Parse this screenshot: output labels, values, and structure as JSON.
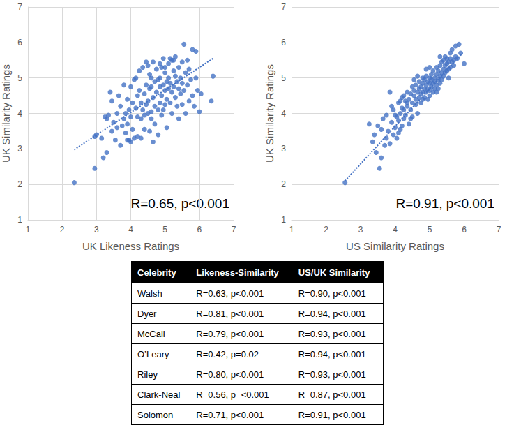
{
  "chart_data": [
    {
      "type": "scatter",
      "x_label": "UK Likeness Ratings",
      "y_label": "UK Similarity Ratings",
      "annotation": "R=0.65, p<0.001",
      "color": "#4472c4",
      "marker": "circle",
      "grid": true,
      "xlim": [
        1,
        7
      ],
      "xticks": [
        1,
        2,
        3,
        4,
        5,
        6,
        7
      ],
      "ylim": [
        1,
        7
      ],
      "yticks": [
        1,
        2,
        3,
        4,
        5,
        6,
        7
      ],
      "trend_line": {
        "x": [
          2.35,
          6.4
        ],
        "values": [
          2.98,
          5.55
        ],
        "line_style": "dotted"
      },
      "points": [
        [
          2.35,
          2.05
        ],
        [
          2.95,
          2.45
        ],
        [
          2.95,
          3.35
        ],
        [
          3.0,
          3.4
        ],
        [
          3.15,
          3.3
        ],
        [
          3.2,
          2.75
        ],
        [
          3.25,
          3.9
        ],
        [
          3.3,
          3.85
        ],
        [
          3.3,
          2.9
        ],
        [
          3.35,
          3.95
        ],
        [
          3.4,
          4.6
        ],
        [
          3.45,
          3.5
        ],
        [
          3.45,
          4.35
        ],
        [
          3.5,
          3.75
        ],
        [
          3.55,
          3.25
        ],
        [
          3.6,
          4.0
        ],
        [
          3.6,
          3.6
        ],
        [
          3.65,
          4.5
        ],
        [
          3.7,
          3.1
        ],
        [
          3.7,
          4.2
        ],
        [
          3.75,
          3.65
        ],
        [
          3.8,
          4.8
        ],
        [
          3.8,
          3.85
        ],
        [
          3.85,
          4.0
        ],
        [
          3.85,
          3.45
        ],
        [
          3.9,
          4.4
        ],
        [
          3.9,
          3.7
        ],
        [
          3.95,
          4.1
        ],
        [
          3.95,
          3.25
        ],
        [
          4.0,
          4.75
        ],
        [
          4.0,
          3.2
        ],
        [
          4.0,
          3.9
        ],
        [
          4.05,
          4.3
        ],
        [
          4.05,
          3.55
        ],
        [
          4.1,
          4.95
        ],
        [
          4.1,
          3.3
        ],
        [
          4.15,
          4.15
        ],
        [
          4.15,
          5.0
        ],
        [
          4.2,
          4.5
        ],
        [
          4.2,
          3.35
        ],
        [
          4.2,
          3.9
        ],
        [
          4.25,
          4.65
        ],
        [
          4.25,
          5.2
        ],
        [
          4.3,
          3.85
        ],
        [
          4.3,
          4.3
        ],
        [
          4.35,
          4.1
        ],
        [
          4.35,
          5.3
        ],
        [
          4.4,
          4.55
        ],
        [
          4.4,
          3.95
        ],
        [
          4.4,
          3.55
        ],
        [
          4.45,
          4.8
        ],
        [
          4.45,
          5.45
        ],
        [
          4.5,
          4.0
        ],
        [
          4.5,
          5.35
        ],
        [
          4.5,
          4.35
        ],
        [
          4.55,
          3.5
        ],
        [
          4.55,
          4.7
        ],
        [
          4.55,
          5.1
        ],
        [
          4.6,
          4.05
        ],
        [
          4.6,
          3.85
        ],
        [
          4.6,
          5.0
        ],
        [
          4.65,
          4.45
        ],
        [
          4.65,
          5.45
        ],
        [
          4.7,
          4.2
        ],
        [
          4.7,
          4.9
        ],
        [
          4.7,
          3.7
        ],
        [
          4.75,
          4.6
        ],
        [
          4.75,
          5.25
        ],
        [
          4.8,
          4.95
        ],
        [
          4.8,
          4.1
        ],
        [
          4.8,
          3.4
        ],
        [
          4.85,
          4.75
        ],
        [
          4.85,
          5.0
        ],
        [
          4.85,
          4.3
        ],
        [
          4.9,
          5.3
        ],
        [
          4.9,
          4.5
        ],
        [
          4.9,
          3.95
        ],
        [
          4.95,
          4.8
        ],
        [
          4.95,
          5.55
        ],
        [
          5.0,
          4.65
        ],
        [
          5.0,
          4.25
        ],
        [
          5.0,
          5.15
        ],
        [
          5.05,
          4.9
        ],
        [
          5.05,
          4.4
        ],
        [
          5.05,
          3.6
        ],
        [
          5.1,
          5.4
        ],
        [
          5.1,
          4.7
        ],
        [
          5.1,
          5.0
        ],
        [
          5.15,
          4.3
        ],
        [
          5.15,
          4.85
        ],
        [
          5.2,
          5.5
        ],
        [
          5.2,
          4.6
        ],
        [
          5.2,
          4.0
        ],
        [
          5.25,
          5.2
        ],
        [
          5.25,
          4.75
        ],
        [
          5.3,
          5.05
        ],
        [
          5.3,
          4.45
        ],
        [
          5.3,
          5.6
        ],
        [
          5.35,
          4.9
        ],
        [
          5.35,
          4.2
        ],
        [
          5.4,
          5.3
        ],
        [
          5.4,
          4.7
        ],
        [
          5.4,
          3.85
        ],
        [
          5.45,
          5.0
        ],
        [
          5.45,
          4.55
        ],
        [
          5.5,
          5.45
        ],
        [
          5.5,
          4.85
        ],
        [
          5.5,
          4.25
        ],
        [
          5.55,
          5.95
        ],
        [
          5.55,
          4.65
        ],
        [
          5.6,
          5.15
        ],
        [
          5.6,
          4.0
        ],
        [
          5.65,
          5.5
        ],
        [
          5.65,
          4.8
        ],
        [
          5.7,
          4.35
        ],
        [
          5.7,
          5.25
        ],
        [
          5.75,
          4.95
        ],
        [
          5.8,
          5.8
        ],
        [
          5.8,
          4.5
        ],
        [
          5.85,
          4.2
        ],
        [
          5.9,
          5.75
        ],
        [
          5.9,
          5.0
        ],
        [
          5.95,
          4.65
        ],
        [
          6.0,
          4.05
        ],
        [
          6.05,
          4.55
        ],
        [
          6.35,
          4.35
        ],
        [
          6.4,
          5.05
        ],
        [
          4.65,
          3.2
        ],
        [
          4.3,
          3.3
        ],
        [
          3.9,
          3.25
        ],
        [
          4.85,
          5.4
        ],
        [
          5.0,
          5.3
        ],
        [
          4.6,
          4.75
        ],
        [
          4.45,
          4.25
        ],
        [
          5.25,
          5.5
        ],
        [
          4.95,
          4.1
        ],
        [
          5.15,
          5.55
        ]
      ]
    },
    {
      "type": "scatter",
      "x_label": "US Similarity Ratings",
      "y_label": "UK Similarity Ratings",
      "annotation": "R=0.91, p<0.001",
      "color": "#4472c4",
      "marker": "circle",
      "grid": true,
      "xlim": [
        1,
        7
      ],
      "xticks": [
        1,
        2,
        3,
        4,
        5,
        6,
        7
      ],
      "ylim": [
        1,
        7
      ],
      "yticks": [
        1,
        2,
        3,
        4,
        5,
        6,
        7
      ],
      "trend_line": {
        "x": [
          2.55,
          5.95
        ],
        "values": [
          2.1,
          5.7
        ],
        "line_style": "dotted"
      },
      "points": [
        [
          2.55,
          2.05
        ],
        [
          3.55,
          2.45
        ],
        [
          3.6,
          2.75
        ],
        [
          3.45,
          2.9
        ],
        [
          3.35,
          3.2
        ],
        [
          3.4,
          3.4
        ],
        [
          3.25,
          3.7
        ],
        [
          3.5,
          3.65
        ],
        [
          3.7,
          3.1
        ],
        [
          3.75,
          3.3
        ],
        [
          3.8,
          3.5
        ],
        [
          3.85,
          3.15
        ],
        [
          3.65,
          3.85
        ],
        [
          3.9,
          3.75
        ],
        [
          3.95,
          3.4
        ],
        [
          3.95,
          4.1
        ],
        [
          3.9,
          4.2
        ],
        [
          3.85,
          4.6
        ],
        [
          4.0,
          3.6
        ],
        [
          4.05,
          3.9
        ],
        [
          4.05,
          3.3
        ],
        [
          4.1,
          3.8
        ],
        [
          4.1,
          4.3
        ],
        [
          4.15,
          4.0
        ],
        [
          4.15,
          3.55
        ],
        [
          4.2,
          4.15
        ],
        [
          4.2,
          4.45
        ],
        [
          4.25,
          3.85
        ],
        [
          4.25,
          4.1
        ],
        [
          4.3,
          4.35
        ],
        [
          4.3,
          3.95
        ],
        [
          4.35,
          4.2
        ],
        [
          4.35,
          4.6
        ],
        [
          4.4,
          3.7
        ],
        [
          4.4,
          4.4
        ],
        [
          4.45,
          4.1
        ],
        [
          4.45,
          4.55
        ],
        [
          4.5,
          4.3
        ],
        [
          4.5,
          4.75
        ],
        [
          4.5,
          3.9
        ],
        [
          4.55,
          4.5
        ],
        [
          4.55,
          4.65
        ],
        [
          4.6,
          4.25
        ],
        [
          4.6,
          4.8
        ],
        [
          4.6,
          4.4
        ],
        [
          4.65,
          4.6
        ],
        [
          4.65,
          4.0
        ],
        [
          4.7,
          4.7
        ],
        [
          4.7,
          4.45
        ],
        [
          4.7,
          4.9
        ],
        [
          4.75,
          4.55
        ],
        [
          4.75,
          4.75
        ],
        [
          4.75,
          4.3
        ],
        [
          4.8,
          4.85
        ],
        [
          4.8,
          4.6
        ],
        [
          4.8,
          5.0
        ],
        [
          4.85,
          4.7
        ],
        [
          4.85,
          4.45
        ],
        [
          4.85,
          4.95
        ],
        [
          4.9,
          4.8
        ],
        [
          4.9,
          4.6
        ],
        [
          4.9,
          5.05
        ],
        [
          4.95,
          4.7
        ],
        [
          4.95,
          4.9
        ],
        [
          4.95,
          4.4
        ],
        [
          5.0,
          4.85
        ],
        [
          5.0,
          4.65
        ],
        [
          5.0,
          5.0
        ],
        [
          5.0,
          4.5
        ],
        [
          5.05,
          4.75
        ],
        [
          5.05,
          5.1
        ],
        [
          5.05,
          4.95
        ],
        [
          5.1,
          4.6
        ],
        [
          5.1,
          4.85
        ],
        [
          5.1,
          5.2
        ],
        [
          5.15,
          4.7
        ],
        [
          5.15,
          5.0
        ],
        [
          5.15,
          4.9
        ],
        [
          5.2,
          4.8
        ],
        [
          5.2,
          5.1
        ],
        [
          5.2,
          5.3
        ],
        [
          5.25,
          4.95
        ],
        [
          5.25,
          5.2
        ],
        [
          5.25,
          4.7
        ],
        [
          5.3,
          5.05
        ],
        [
          5.3,
          5.35
        ],
        [
          5.3,
          4.85
        ],
        [
          5.35,
          5.15
        ],
        [
          5.35,
          5.45
        ],
        [
          5.35,
          4.95
        ],
        [
          5.4,
          5.25
        ],
        [
          5.4,
          5.5
        ],
        [
          5.4,
          5.05
        ],
        [
          5.45,
          5.35
        ],
        [
          5.45,
          5.6
        ],
        [
          5.45,
          5.15
        ],
        [
          5.5,
          5.4
        ],
        [
          5.5,
          5.2
        ],
        [
          5.5,
          5.55
        ],
        [
          5.55,
          5.45
        ],
        [
          5.55,
          5.25
        ],
        [
          5.6,
          5.3
        ],
        [
          5.6,
          5.55
        ],
        [
          5.6,
          5.7
        ],
        [
          5.65,
          5.45
        ],
        [
          5.65,
          5.8
        ],
        [
          5.7,
          5.5
        ],
        [
          5.7,
          5.35
        ],
        [
          5.75,
          5.6
        ],
        [
          5.75,
          5.9
        ],
        [
          5.8,
          5.55
        ],
        [
          5.85,
          5.95
        ],
        [
          5.9,
          5.7
        ],
        [
          6.0,
          5.4
        ],
        [
          4.55,
          4.95
        ],
        [
          4.65,
          5.05
        ],
        [
          4.35,
          4.3
        ],
        [
          4.2,
          3.65
        ],
        [
          4.0,
          3.95
        ],
        [
          3.75,
          3.95
        ],
        [
          4.45,
          3.85
        ],
        [
          5.0,
          5.3
        ],
        [
          4.8,
          4.4
        ],
        [
          5.2,
          4.6
        ],
        [
          5.55,
          5.0
        ],
        [
          4.9,
          5.25
        ],
        [
          4.25,
          4.5
        ],
        [
          4.15,
          4.35
        ],
        [
          3.6,
          3.55
        ],
        [
          4.1,
          3.45
        ],
        [
          5.3,
          5.6
        ]
      ]
    }
  ],
  "table": {
    "header": [
      "Celebrity",
      "Likeness-Similarity",
      "US/UK Similarity"
    ],
    "rows": [
      [
        "Walsh",
        "R=0.63, p<0.001",
        "R=0.90, p<0.001"
      ],
      [
        "Dyer",
        "R=0.81, p<0.001",
        "R=0.94, p<0.001"
      ],
      [
        "McCall",
        "R=0.79, p<0.001",
        "R=0.93, p<0.001"
      ],
      [
        "O’Leary",
        "R=0.42, p=0.02",
        "R=0.94, p<0.001"
      ],
      [
        "Riley",
        "R=0.80, p<0.001",
        "R=0.93, p<0.001"
      ],
      [
        "Clark-Neal",
        "R=0.56, p=<0.001",
        "R=0.87, p<0.001"
      ],
      [
        "Solomon",
        "R=0.71, p<0.001",
        "R=0.91, p<0.001"
      ]
    ]
  }
}
